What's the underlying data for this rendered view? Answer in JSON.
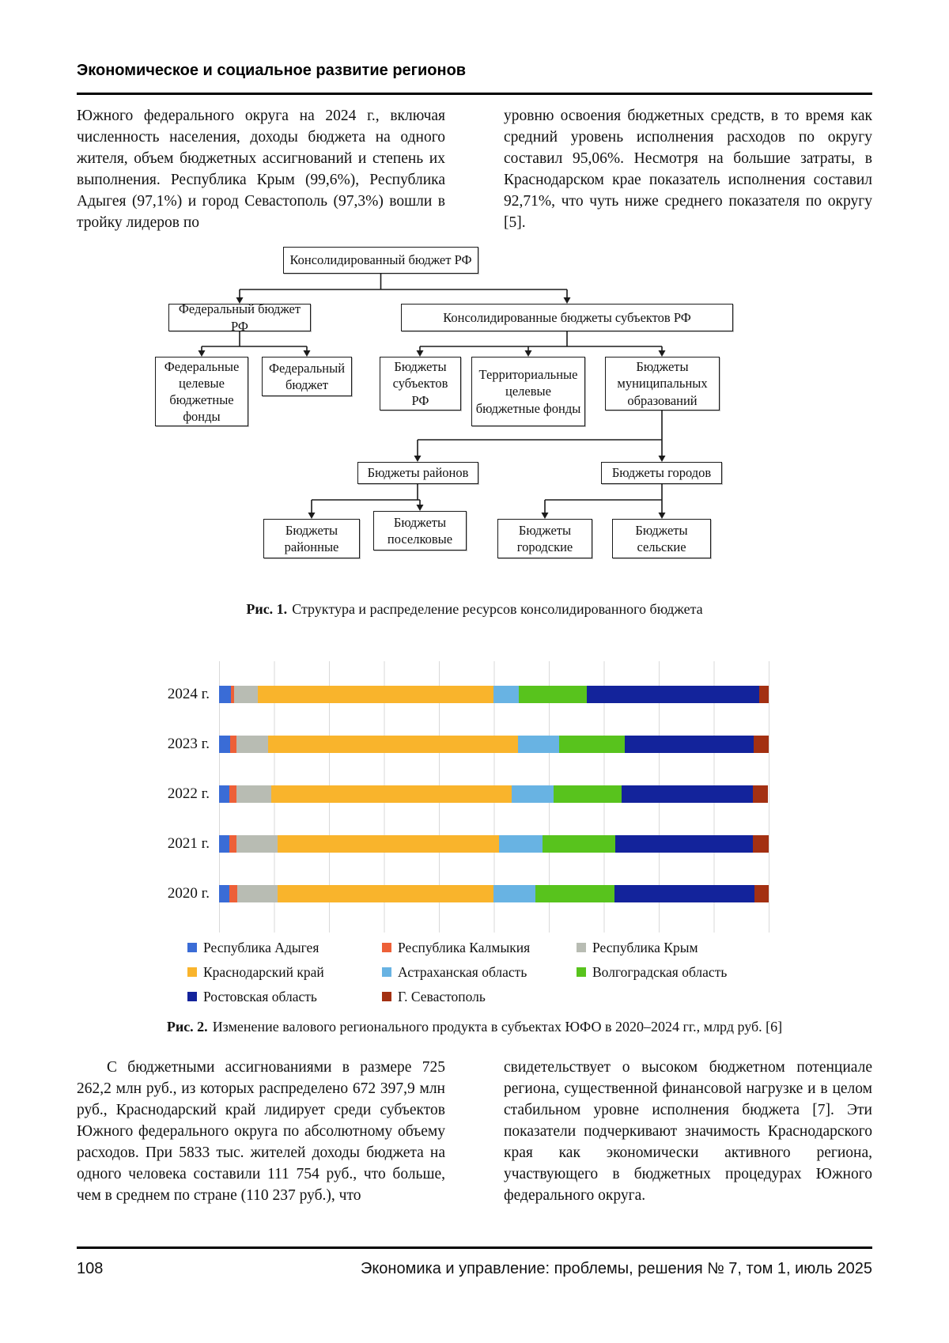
{
  "page": {
    "header": {
      "title": "Экономическое и социальное развитие регионов"
    },
    "intro_columns": {
      "left": "Южного федерального округа на 2024 г., включая численность населения, доходы бюджета на одного жителя, объем бюджетных ассигнований и степень их выполнения. Республика Крым (99,6%), Республика Адыгея (97,1%) и город Севастополь (97,3%) вошли в тройку лидеров по",
      "right": "уровню освоения бюджетных средств, в то время как средний уровень исполнения расходов по округу составил 95,06%. Несмотря на большие затраты, в Краснодарском крае показатель исполнения составил 92,71%, что чуть ниже среднего показателя по округу [5]."
    },
    "figure1": {
      "caption_label": "Рис. 1.",
      "caption_text": "Структура и распределение ресурсов консолидированного бюджета",
      "nodes": {
        "a": "Консолидированный бюджет РФ",
        "b": "Федеральный бюджет РФ",
        "c": "Консолидированные бюджеты субъектов РФ",
        "d": "Федеральные целевые бюджетные фонды",
        "e": "Федеральный бюджет",
        "f": "Бюджеты субъектов РФ",
        "g": "Территориальные целевые бюджетные фонды",
        "h": "Бюджеты муниципальных образований",
        "i": "Бюджеты районов",
        "j": "Бюджеты городов",
        "k": "Бюджеты районные",
        "l": "Бюджеты поселковые",
        "m": "Бюджеты городские",
        "n": "Бюджеты сельские"
      }
    },
    "figure2": {
      "caption_label": "Рис. 2.",
      "caption_text": "Изменение валового регионального продукта в субъектах ЮФО в 2020–2024 гг., млрд руб. [6]"
    },
    "body_columns": {
      "left": "С бюджетными ассигнованиями в размере 725 262,2 млн руб., из которых распределено 672 397,9 млн руб., Краснодарский край лидирует среди субъектов Южного федерального округа по абсолютному объему расходов. При 5833 тыс. жителей доходы бюджета на одного человека составили 111 754 руб., что больше, чем в среднем по стране (110 237 руб.), что",
      "right": "свидетельствует о высоком бюджетном потенциале региона, существенной финансовой нагрузке и в целом стабильном уровне исполнения бюджета [7]. Эти показатели подчеркивают значимость Краснодарского края как экономически активного региона, участвующего в бюджетных процедурах Южного федерального округа."
    },
    "footer": {
      "page_number": "108",
      "journal": "Экономика и управление: проблемы, решения № 7, том 1, июль 2025"
    }
  },
  "chart_data": {
    "type": "bar",
    "subtype": "horizontal-100%-stacked",
    "title": "",
    "categories": [
      "2024 г.",
      "2023 г.",
      "2022 г.",
      "2021 г.",
      "2020 г."
    ],
    "units": "share of total GRP, % (estimated from bar lengths; caption units: млрд руб.)",
    "grid": true,
    "legend_position": "bottom",
    "x_axis_labels_visible": false,
    "series": [
      {
        "name": "Республика Адыгея",
        "color": "#3a6cd6",
        "values": [
          2.2,
          2.0,
          1.9,
          1.8,
          1.9
        ]
      },
      {
        "name": "Республика Калмыкия",
        "color": "#ed6038",
        "values": [
          0.5,
          1.1,
          1.2,
          1.4,
          1.4
        ]
      },
      {
        "name": "Республика Крым",
        "color": "#b8bcb3",
        "values": [
          4.3,
          5.8,
          6.4,
          7.5,
          7.3
        ]
      },
      {
        "name": "Краснодарский край",
        "color": "#f9b42c",
        "values": [
          42.9,
          45.5,
          43.7,
          40.2,
          39.3
        ]
      },
      {
        "name": "Астраханская область",
        "color": "#68b3e3",
        "values": [
          4.6,
          7.5,
          7.7,
          8.0,
          7.6
        ]
      },
      {
        "name": "Волгоградская область",
        "color": "#58c31d",
        "values": [
          12.4,
          11.9,
          12.3,
          13.2,
          14.5
        ]
      },
      {
        "name": "Ростовская область",
        "color": "#13239b",
        "values": [
          31.4,
          23.5,
          23.9,
          25.1,
          25.4
        ]
      },
      {
        "name": "Г. Севастополь",
        "color": "#a33012",
        "values": [
          1.7,
          2.7,
          2.8,
          2.8,
          2.6
        ]
      }
    ]
  }
}
